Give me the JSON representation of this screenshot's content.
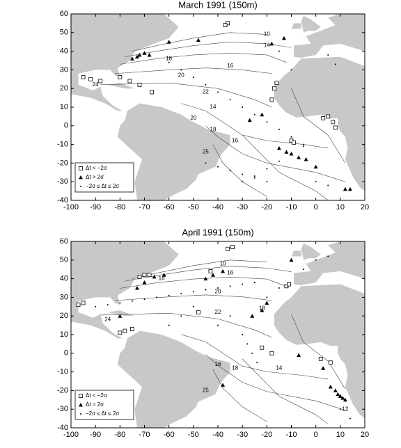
{
  "chart_data": [
    {
      "type": "scatter",
      "title": "March 1991 (150m)",
      "xlim": [
        -100,
        20
      ],
      "ylim": [
        -40,
        60
      ],
      "xticks": [
        -100,
        -90,
        -80,
        -70,
        -60,
        -50,
        -40,
        -30,
        -20,
        -10,
        0,
        10,
        20
      ],
      "yticks": [
        -40,
        -30,
        -20,
        -10,
        0,
        10,
        20,
        30,
        40,
        50,
        60
      ],
      "legend": "lower left",
      "series": [
        {
          "name": "Δt < −2σ",
          "marker": "square",
          "color": "#000000",
          "x": [
            -95,
            -92,
            -88,
            -80,
            -76,
            -72,
            -67,
            -18,
            -17,
            -16,
            3,
            5,
            7,
            8,
            -10,
            -9,
            -36,
            -37
          ],
          "y": [
            26,
            25,
            24,
            26,
            24,
            22,
            18,
            14,
            20,
            23,
            4,
            5,
            2,
            -1,
            -8,
            -9,
            55,
            54
          ]
        },
        {
          "name": "Δt > 2σ",
          "marker": "triangle",
          "color": "#000000",
          "x": [
            -75,
            -73,
            -72,
            -70,
            -68,
            -60,
            -48,
            -22,
            -15,
            -12,
            -10,
            -7,
            -4,
            0,
            12,
            14,
            -18,
            -13,
            -27
          ],
          "y": [
            36,
            37,
            38,
            39,
            38,
            45,
            46,
            6,
            -12,
            -14,
            -15,
            -17,
            -18,
            -22,
            -34,
            -34,
            44,
            47,
            3
          ]
        },
        {
          "name": "−2σ ≤ Δt ≤ 2σ",
          "marker": "dot",
          "color": "#000000",
          "x": [
            -60,
            -55,
            -50,
            -45,
            -40,
            -35,
            -30,
            -25,
            -20,
            -15,
            -10,
            -5,
            -30,
            -25,
            -20,
            -15,
            -10,
            -5,
            0,
            5,
            -45,
            -40,
            -35,
            -30,
            -25,
            -20,
            -15,
            -10,
            5,
            8
          ],
          "y": [
            34,
            30,
            26,
            22,
            18,
            14,
            10,
            6,
            2,
            -2,
            -6,
            -10,
            -30,
            -27,
            -23,
            -19,
            -15,
            -11,
            -30,
            -32,
            -20,
            -22,
            -24,
            -26,
            -28,
            -30,
            40,
            30,
            38,
            33
          ]
        }
      ],
      "annotations": [
        "10",
        "14",
        "18",
        "16",
        "20",
        "22",
        "24",
        "14",
        "20",
        "18",
        "16",
        "25"
      ]
    },
    {
      "type": "scatter",
      "title": "April 1991 (150m)",
      "xlim": [
        -100,
        20
      ],
      "ylim": [
        -40,
        60
      ],
      "xticks": [
        -100,
        -90,
        -80,
        -70,
        -60,
        -50,
        -40,
        -30,
        -20,
        -10,
        0,
        10,
        20
      ],
      "yticks": [
        -40,
        -30,
        -20,
        -10,
        0,
        10,
        20,
        30,
        40,
        50,
        60
      ],
      "legend": "lower left",
      "series": [
        {
          "name": "Δt < −2σ",
          "marker": "square",
          "color": "#000000",
          "x": [
            -97,
            -95,
            -80,
            -78,
            -75,
            -72,
            -70,
            -68,
            -48,
            -36,
            -34,
            -22,
            -18,
            -12,
            -11,
            2,
            6,
            -43
          ],
          "y": [
            26,
            27,
            11,
            12,
            13,
            41,
            42,
            42,
            22,
            56,
            57,
            3,
            0,
            36,
            37,
            -3,
            -5,
            44
          ]
        },
        {
          "name": "Δt > 2σ",
          "marker": "triangle",
          "color": "#000000",
          "x": [
            -73,
            -70,
            -66,
            -62,
            -45,
            -42,
            -38,
            -26,
            -22,
            -20,
            -7,
            3,
            6,
            8,
            9,
            10,
            11,
            12,
            -38,
            -80,
            -10
          ],
          "y": [
            35,
            38,
            41,
            42,
            40,
            42,
            44,
            20,
            23,
            27,
            -1,
            -8,
            -18,
            -20,
            -22,
            -23,
            -24,
            -25,
            -17,
            20,
            50
          ]
        },
        {
          "name": "−2σ ≤ Δt ≤ 2σ",
          "marker": "dot",
          "color": "#000000",
          "x": [
            -90,
            -85,
            -80,
            -75,
            -70,
            -65,
            -60,
            -55,
            -50,
            -45,
            -40,
            -35,
            -30,
            -25,
            -30,
            -28,
            -26,
            -24,
            -20,
            -15,
            -5,
            0,
            5,
            -35,
            -40,
            -50,
            -55,
            -60,
            10,
            14
          ],
          "y": [
            25,
            26,
            27,
            28,
            29,
            30,
            31,
            32,
            33,
            34,
            35,
            36,
            37,
            38,
            10,
            5,
            0,
            -5,
            30,
            35,
            45,
            50,
            52,
            20,
            15,
            25,
            20,
            15,
            -30,
            -35
          ]
        }
      ],
      "annotations": [
        "10",
        "16",
        "18",
        "20",
        "22",
        "24",
        "18",
        "16",
        "18",
        "25",
        "14",
        "12"
      ]
    }
  ]
}
